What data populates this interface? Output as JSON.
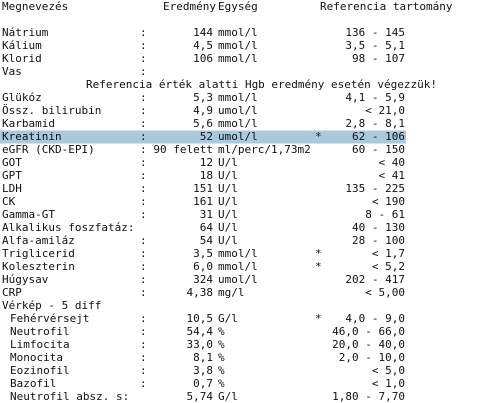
{
  "header": {
    "name": "Megnevezés",
    "result": "Eredmény",
    "unit": "Egység",
    "reference": "Referencia tartomány"
  },
  "rows": [
    {
      "name": "Nátrium",
      "colon": ":",
      "result": "144",
      "unit": "mmol/l",
      "reference": "136 - 145"
    },
    {
      "name": "Kálium",
      "colon": ":",
      "result": "4,5",
      "unit": "mmol/l",
      "reference": "3,5 - 5,1"
    },
    {
      "name": "Klorid",
      "colon": ":",
      "result": "106",
      "unit": "mmol/l",
      "reference": "98 - 107"
    },
    {
      "name": "Vas",
      "colon": ":"
    },
    {
      "note": "Referencia érték alatti Hgb eredmény esetén végezzük!"
    },
    {
      "name": "Glükóz",
      "colon": ":",
      "result": "5,3",
      "unit": "mmol/l",
      "reference": "4,1 - 5,9"
    },
    {
      "name": "Össz. bilirubin",
      "colon": ":",
      "result": "4,9",
      "unit": "umol/l",
      "reference": "< 21,0"
    },
    {
      "name": "Karbamid",
      "colon": ":",
      "result": "5,6",
      "unit": "mmol/l",
      "reference": "2,8 - 8,1"
    },
    {
      "name": "Kreatinin",
      "colon": ":",
      "result": "52",
      "unit": "umol/l",
      "flag": "*",
      "reference": "62 - 106",
      "highlight": true
    },
    {
      "name": "eGFR (CKD-EPI)",
      "colon": ":",
      "result": "90 felett",
      "unit": "ml/perc/1,73m2",
      "reference": "60 - 150"
    },
    {
      "name": "GOT",
      "colon": ":",
      "result": "12",
      "unit": "U/l",
      "reference": "< 40"
    },
    {
      "name": "GPT",
      "colon": ":",
      "result": "18",
      "unit": "U/l",
      "reference": "< 41"
    },
    {
      "name": "LDH",
      "colon": ":",
      "result": "151",
      "unit": "U/l",
      "reference": "135 - 225"
    },
    {
      "name": "CK",
      "colon": ":",
      "result": "161",
      "unit": "U/l",
      "reference": "< 190"
    },
    {
      "name": "Gamma-GT",
      "colon": ":",
      "result": "31",
      "unit": "U/l",
      "reference": "8 - 61"
    },
    {
      "name": "Alkalikus foszfatáz:",
      "result": "64",
      "unit": "U/l",
      "reference": "40 - 130"
    },
    {
      "name": "Alfa-amiláz",
      "colon": ":",
      "result": "54",
      "unit": "U/l",
      "reference": "28 - 100"
    },
    {
      "name": "Triglicerid",
      "colon": ":",
      "result": "3,5",
      "unit": "mmol/l",
      "flag": "*",
      "reference": "< 1,7"
    },
    {
      "name": "Koleszterin",
      "colon": ":",
      "result": "6,0",
      "unit": "mmol/l",
      "flag": "*",
      "reference": "< 5,2"
    },
    {
      "name": "Húgysav",
      "colon": ":",
      "result": "324",
      "unit": "umol/l",
      "reference": "202 - 417"
    },
    {
      "name": "CRP",
      "colon": ":",
      "result": "4,38",
      "unit": "mg/l",
      "reference": "< 5,00"
    },
    {
      "section": "Vérkép - 5 diff"
    },
    {
      "name": "Fehérvérsejt",
      "colon": ":",
      "result": "10,5",
      "unit": "G/l",
      "flag": "*",
      "reference": "4,0 - 9,0"
    },
    {
      "name": "Neutrofil",
      "colon": ":",
      "result": "54,4",
      "unit": "%",
      "reference": "46,0 - 66,0"
    },
    {
      "name": "Limfocita",
      "colon": ":",
      "result": "33,0",
      "unit": "%",
      "reference": "20,0 - 40,0"
    },
    {
      "name": "Monocita",
      "colon": ":",
      "result": "8,1",
      "unit": "%",
      "reference": "2,0 - 10,0"
    },
    {
      "name": "Eozinofil",
      "colon": ":",
      "result": "3,8",
      "unit": "%",
      "reference": "< 5,0"
    },
    {
      "name": "Bazofil",
      "colon": ":",
      "result": "0,7",
      "unit": "%",
      "reference": "< 1,0"
    },
    {
      "name": "Neutrofil absz. s:",
      "result": "5,74",
      "unit": "G/l",
      "reference": "1,80 - 7,70"
    }
  ]
}
